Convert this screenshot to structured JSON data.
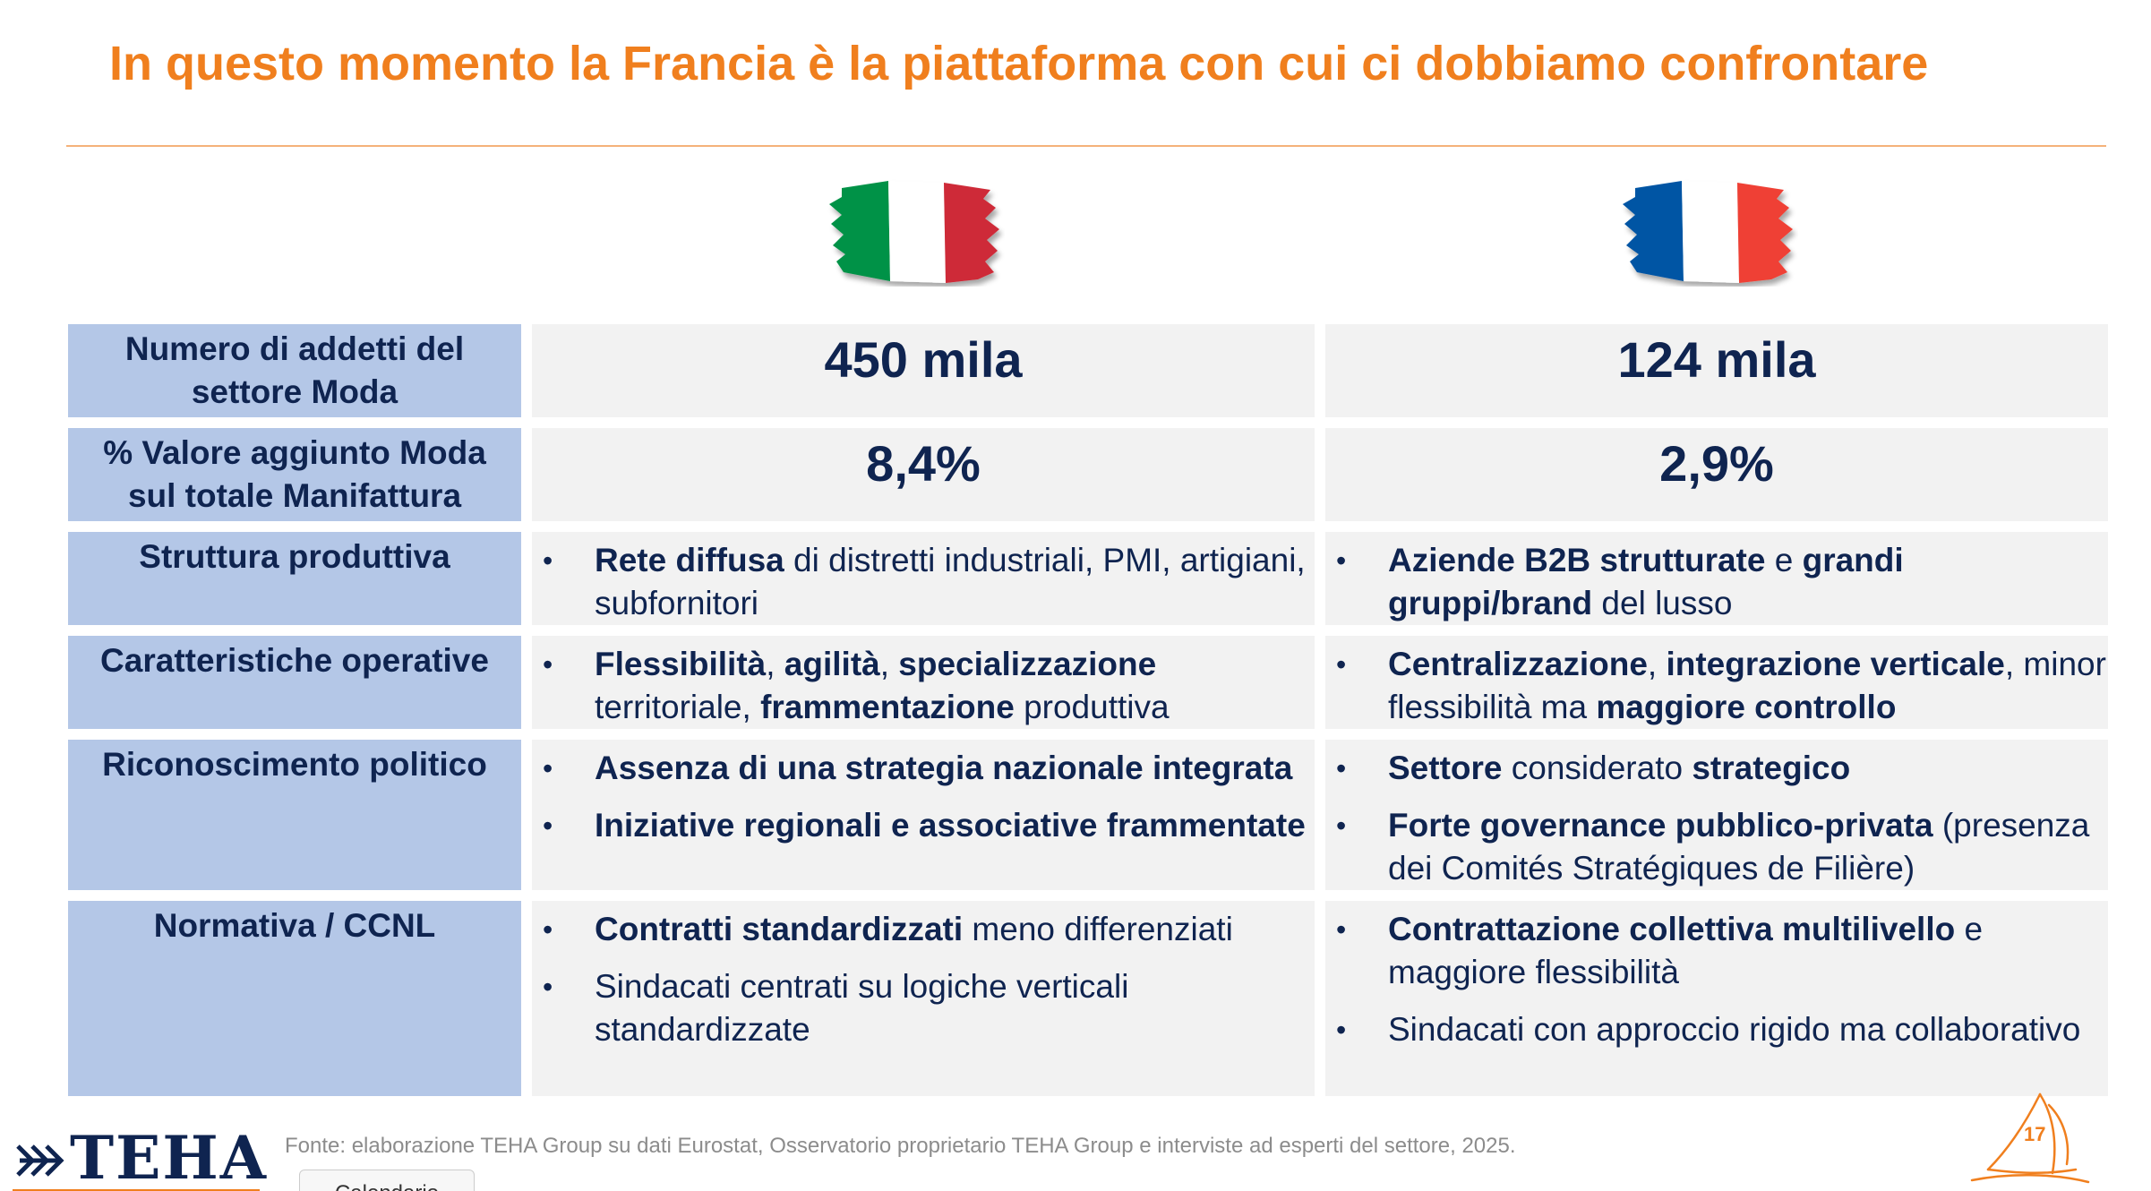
{
  "slide": {
    "title": "In questo momento la Francia è la piattaforma con cui ci dobbiamo confrontare",
    "page_number": "17",
    "source": "Fonte: elaborazione TEHA Group su dati Eurostat, Osservatorio proprietario TEHA Group e interviste ad esperti del settore, 2025.",
    "logo_text": "TEHA",
    "tab_label": "Calendario"
  },
  "flags": {
    "italy": {
      "colors": [
        "#009246",
        "#ffffff",
        "#ce2b37"
      ],
      "icon": "italy-flag-icon"
    },
    "france": {
      "colors": [
        "#0055a4",
        "#ffffff",
        "#ef4135"
      ],
      "icon": "france-flag-icon"
    }
  },
  "colors": {
    "accent": "#f07f1e",
    "navy": "#0f2450",
    "label_bg": "#b4c7e7",
    "cell_bg": "#f2f2f2"
  },
  "rows": [
    {
      "label_lines": [
        "Numero di addetti del",
        "settore Moda"
      ],
      "italy_value": "450 mila",
      "france_value": "124 mila"
    },
    {
      "label_lines": [
        "% Valore aggiunto Moda",
        "sul totale Manifattura"
      ],
      "italy_value": "8,4%",
      "france_value": "2,9%"
    },
    {
      "label_lines": [
        "Struttura produttiva"
      ],
      "italy": [
        [
          {
            "b": "Rete diffusa"
          },
          {
            "t": " di distretti industriali, PMI, artigiani, subfornitori"
          }
        ]
      ],
      "france": [
        [
          {
            "b": "Aziende B2B strutturate"
          },
          {
            "t": " e "
          },
          {
            "b": "grandi gruppi/brand"
          },
          {
            "t": " del lusso"
          }
        ]
      ]
    },
    {
      "label_lines": [
        "Caratteristiche operative"
      ],
      "italy": [
        [
          {
            "b": "Flessibilità"
          },
          {
            "t": ", "
          },
          {
            "b": "agilità"
          },
          {
            "t": ", "
          },
          {
            "b": "specializzazione"
          },
          {
            "t": " territoriale, "
          },
          {
            "b": "frammentazione"
          },
          {
            "t": " produttiva"
          }
        ]
      ],
      "france": [
        [
          {
            "b": "Centralizzazione"
          },
          {
            "t": ", "
          },
          {
            "b": "integrazione verticale"
          },
          {
            "t": ", minor flessibilità ma "
          },
          {
            "b": "maggiore controllo"
          }
        ]
      ]
    },
    {
      "label_lines": [
        "Riconoscimento politico"
      ],
      "italy": [
        [
          {
            "b": "Assenza di una strategia nazionale integrata"
          }
        ],
        [
          {
            "b": "Iniziative regionali e associative frammentate"
          }
        ]
      ],
      "france": [
        [
          {
            "b": "Settore"
          },
          {
            "t": " considerato "
          },
          {
            "b": "strategico"
          }
        ],
        [
          {
            "b": "Forte governance pubblico-privata"
          },
          {
            "t": " (presenza dei Comités Stratégiques de Filière)"
          }
        ]
      ]
    },
    {
      "label_lines": [
        "Normativa / CCNL"
      ],
      "italy": [
        [
          {
            "b": "Contratti standardizzati"
          },
          {
            "t": " meno differenziati"
          }
        ],
        [
          {
            "t": "Sindacati centrati su logiche verticali standardizzate"
          }
        ]
      ],
      "france": [
        [
          {
            "b": "Contrattazione collettiva multilivello"
          },
          {
            "t": " e maggiore flessibilità"
          }
        ],
        [
          {
            "t": "Sindacati con approccio rigido ma collaborativo"
          }
        ]
      ]
    }
  ]
}
